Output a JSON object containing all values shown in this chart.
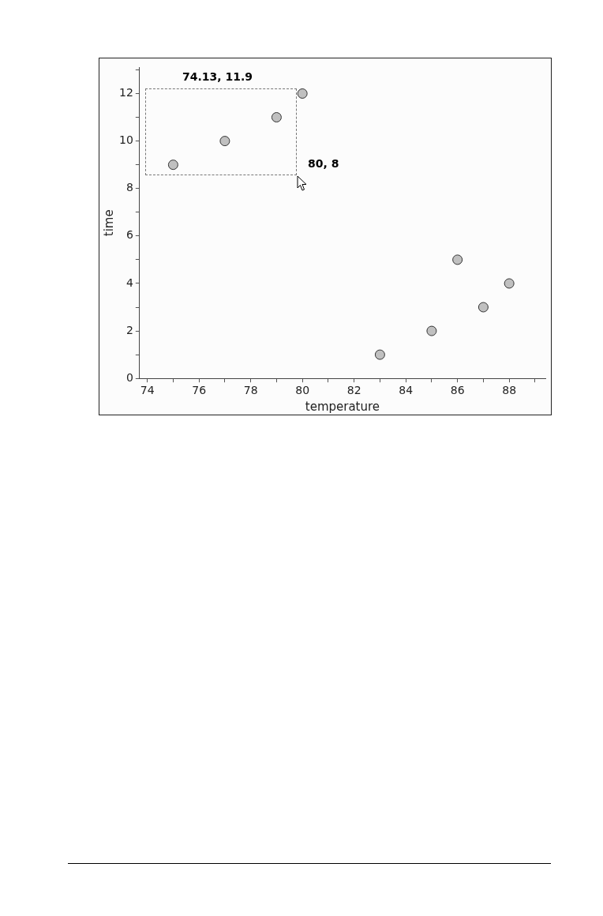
{
  "chart_data": {
    "type": "scatter",
    "xlabel": "temperature",
    "ylabel": "time",
    "x": [
      75,
      77,
      79,
      80,
      83,
      85,
      86,
      87,
      88
    ],
    "series": [
      {
        "color": "#c0c0c0",
        "values": [
          9,
          10,
          11,
          12,
          1,
          2,
          5,
          3,
          4
        ]
      }
    ],
    "xlim": [
      73.7,
      89.4
    ],
    "xticks": [
      74,
      {
        "value": 75,
        "label": null
      },
      76,
      {
        "value": 77,
        "label": null
      },
      78,
      {
        "value": 79,
        "label": null
      },
      80,
      {
        "value": 81,
        "label": null
      },
      82,
      {
        "value": 83,
        "label": null
      },
      84,
      {
        "value": 85,
        "label": null
      },
      86,
      {
        "value": 87,
        "label": null
      },
      88,
      {
        "value": 89,
        "label": null
      }
    ],
    "ylim": [
      0,
      13.1
    ],
    "yticks": [
      0,
      {
        "value": 1,
        "label": null
      },
      2,
      {
        "value": 3,
        "label": null
      },
      4,
      {
        "value": 5,
        "label": null
      },
      6,
      {
        "value": 7,
        "label": null
      },
      8,
      {
        "value": 9,
        "label": null
      },
      10,
      {
        "value": 11,
        "label": null
      },
      12,
      {
        "value": 13,
        "label": null
      }
    ],
    "annotations": [
      "74.13, 11.9",
      "80, 8"
    ],
    "marker": "circle",
    "grid": false,
    "legend": false
  }
}
